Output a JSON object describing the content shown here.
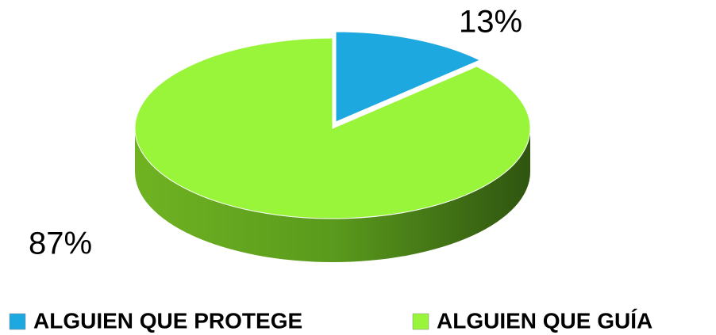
{
  "chart_data": {
    "type": "pie",
    "categories": [
      "ALGUIEN QUE PROTEGE",
      "ALGUIEN QUE GUÍA"
    ],
    "values": [
      13,
      87
    ],
    "value_labels": [
      "13%",
      "87%"
    ],
    "colors": [
      "#1ea8e0",
      "#99f53a"
    ],
    "legend": "bottom"
  }
}
